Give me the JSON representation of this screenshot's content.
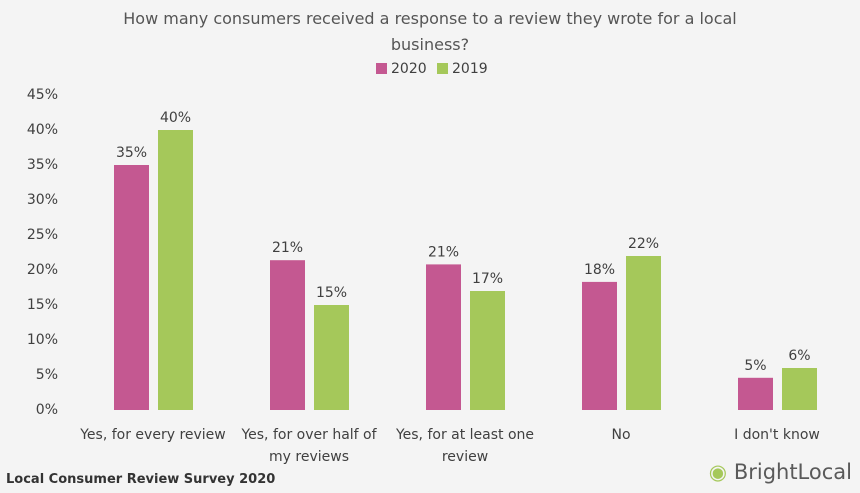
{
  "chart_data": {
    "type": "bar",
    "title": "How many consumers received a response to a review they wrote for a local business?",
    "categories": [
      "Yes, for every review",
      "Yes, for over half of my reviews",
      "Yes, for at least one review",
      "No",
      "I don't know"
    ],
    "series": [
      {
        "name": "2020",
        "color": "#c45891",
        "values": [
          35,
          21.4,
          20.8,
          18.3,
          4.6
        ],
        "value_labels": [
          "35%",
          "21%",
          "21%",
          "18%",
          "5%"
        ]
      },
      {
        "name": "2019",
        "color": "#a5c85a",
        "values": [
          40,
          15,
          17,
          22,
          6
        ],
        "value_labels": [
          "40%",
          "15%",
          "17%",
          "22%",
          "6%"
        ]
      }
    ],
    "ylim": [
      0,
      45
    ],
    "yticks": [
      {
        "value": 0,
        "label": "0%"
      },
      {
        "value": 5,
        "label": "5%"
      },
      {
        "value": 10,
        "label": "10%"
      },
      {
        "value": 15,
        "label": "15%"
      },
      {
        "value": 20,
        "label": "20%"
      },
      {
        "value": 25,
        "label": "25%"
      },
      {
        "value": 30,
        "label": "30%"
      },
      {
        "value": 35,
        "label": "35%"
      },
      {
        "value": 40,
        "label": "40%"
      },
      {
        "value": 45,
        "label": "45%"
      }
    ],
    "grid": false,
    "legend": "top",
    "source": "Local Consumer Review Survey 2020",
    "brand": "BrightLocal"
  }
}
